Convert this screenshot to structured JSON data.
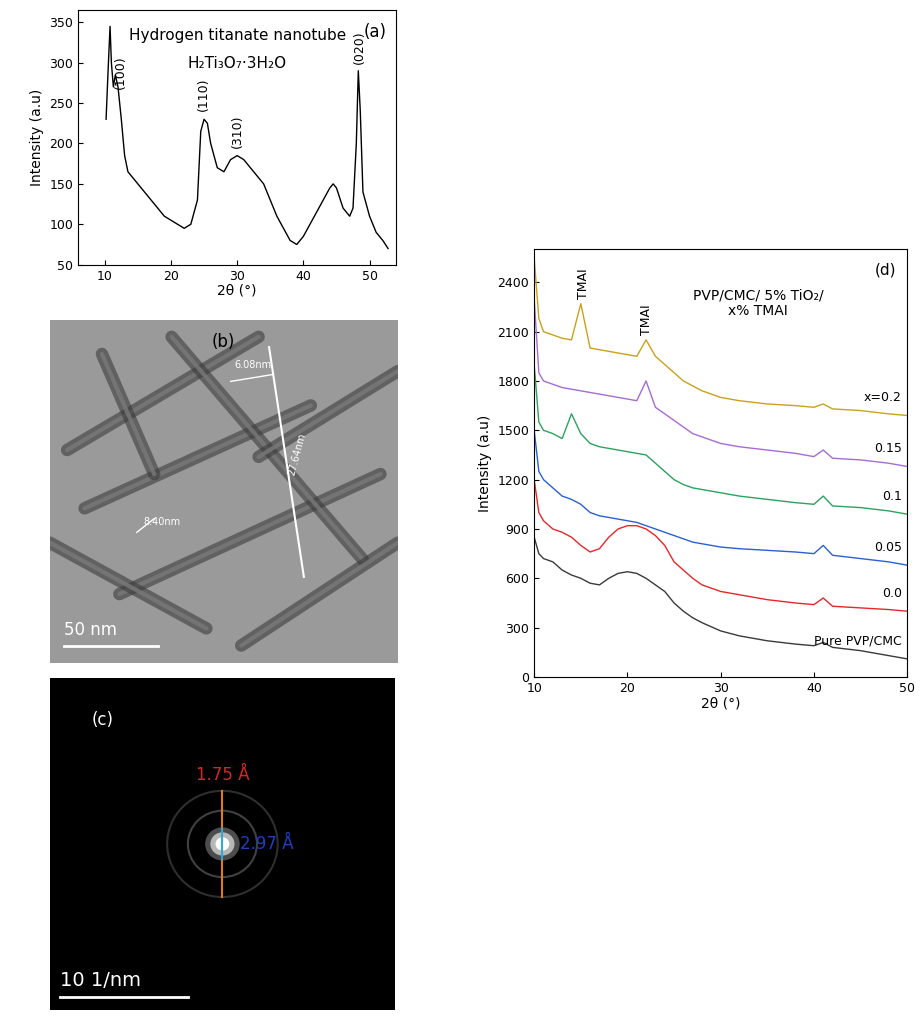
{
  "chart_data": [
    {
      "type": "line",
      "panel_label": "(a)",
      "title": "Hydrogen titanate nanotube",
      "subtitle": "H₂Ti₃O₇·3H₂O",
      "x_label": "2θ (°)",
      "y_label": "Intensity (a.u)",
      "x": [
        10.2,
        10.5,
        10.8,
        11.0,
        11.3,
        11.6,
        12.0,
        12.5,
        13,
        13.5,
        14,
        15,
        16,
        17,
        18,
        19,
        20,
        21,
        22,
        23,
        24,
        24.5,
        25,
        25.5,
        26,
        27,
        28,
        29,
        30,
        31,
        32,
        33,
        34,
        35,
        36,
        37,
        38,
        39,
        40,
        41,
        42,
        43,
        44,
        44.5,
        45,
        46,
        47,
        47.5,
        48,
        48.3,
        48.6,
        49,
        50,
        51,
        52,
        52.8
      ],
      "values": [
        230,
        290,
        345,
        300,
        270,
        285,
        270,
        230,
        185,
        165,
        160,
        150,
        140,
        130,
        120,
        110,
        105,
        100,
        95,
        100,
        130,
        215,
        230,
        225,
        200,
        170,
        165,
        180,
        185,
        180,
        170,
        160,
        150,
        130,
        110,
        95,
        80,
        75,
        85,
        100,
        115,
        130,
        145,
        150,
        145,
        120,
        110,
        120,
        200,
        290,
        240,
        140,
        110,
        90,
        80,
        70
      ],
      "color": "#000000",
      "xlim": [
        6,
        54
      ],
      "ylim": [
        50,
        365
      ],
      "xticks": [
        10,
        20,
        30,
        40,
        50
      ],
      "yticks": [
        50,
        100,
        150,
        200,
        250,
        300,
        350
      ],
      "annotations": [
        {
          "text": "(100)",
          "x": 12.4,
          "y": 268
        },
        {
          "text": "(110)",
          "x": 24.9,
          "y": 240
        },
        {
          "text": "(310)",
          "x": 30.0,
          "y": 195
        },
        {
          "text": "(020)",
          "x": 48.4,
          "y": 298
        }
      ]
    },
    {
      "type": "image",
      "panel_label": "(b)",
      "scale_bar": "50 nm",
      "measurements": [
        "6.08nm",
        "27.64nm",
        "8.40nm"
      ]
    },
    {
      "type": "image",
      "panel_label": "(c)",
      "scale_bar": "10 1/nm",
      "measurements": [
        {
          "text": "1.75 Å",
          "color": "#d62728"
        },
        {
          "text": "2.97 Å",
          "color": "#1f3fbf"
        }
      ]
    },
    {
      "type": "line",
      "panel_label": "(d)",
      "x_label": "2θ (°)",
      "y_label": "Intensity (a.u)",
      "x": [
        10,
        10.5,
        11,
        12,
        13,
        14,
        15,
        16,
        17,
        18,
        19,
        20,
        21,
        22,
        23,
        24,
        25,
        26,
        27,
        28,
        30,
        32,
        35,
        38,
        40,
        41,
        42,
        45,
        48,
        50
      ],
      "series": [
        {
          "name": "Pure PVP/CMC",
          "color": "#3a3a3a",
          "values": [
            850,
            750,
            720,
            700,
            650,
            620,
            600,
            570,
            560,
            600,
            630,
            640,
            630,
            600,
            560,
            520,
            450,
            400,
            360,
            330,
            280,
            250,
            220,
            200,
            190,
            210,
            180,
            160,
            130,
            110
          ]
        },
        {
          "name": "0.0",
          "color": "#e8262a",
          "values": [
            1200,
            1000,
            950,
            900,
            880,
            850,
            800,
            760,
            780,
            850,
            900,
            920,
            920,
            900,
            860,
            800,
            700,
            650,
            600,
            560,
            520,
            500,
            470,
            450,
            440,
            480,
            430,
            420,
            410,
            400
          ]
        },
        {
          "name": "0.05",
          "color": "#2a5fd6",
          "values": [
            1500,
            1250,
            1200,
            1150,
            1100,
            1080,
            1050,
            1000,
            980,
            970,
            960,
            950,
            940,
            920,
            900,
            880,
            860,
            840,
            820,
            810,
            790,
            780,
            770,
            760,
            750,
            800,
            740,
            720,
            700,
            680
          ]
        },
        {
          "name": "0.1",
          "color": "#2ca25f",
          "values": [
            1900,
            1550,
            1500,
            1480,
            1450,
            1600,
            1480,
            1420,
            1400,
            1390,
            1380,
            1370,
            1360,
            1350,
            1300,
            1250,
            1200,
            1170,
            1150,
            1140,
            1120,
            1100,
            1080,
            1060,
            1050,
            1100,
            1040,
            1030,
            1010,
            990
          ]
        },
        {
          "name": "0.15",
          "color": "#a66bd6",
          "values": [
            2300,
            1850,
            1800,
            1780,
            1760,
            1750,
            1740,
            1730,
            1720,
            1710,
            1700,
            1690,
            1680,
            1800,
            1640,
            1600,
            1560,
            1520,
            1480,
            1460,
            1420,
            1400,
            1380,
            1360,
            1340,
            1380,
            1330,
            1320,
            1300,
            1280
          ]
        },
        {
          "name": "x=0.2",
          "color": "#c9a21a",
          "values": [
            2550,
            2180,
            2100,
            2080,
            2060,
            2050,
            2270,
            2000,
            1990,
            1980,
            1970,
            1960,
            1950,
            2050,
            1950,
            1900,
            1850,
            1800,
            1770,
            1740,
            1700,
            1680,
            1660,
            1650,
            1640,
            1660,
            1630,
            1620,
            1600,
            1590
          ]
        }
      ],
      "xlim": [
        10,
        50
      ],
      "ylim": [
        0,
        2600
      ],
      "xticks": [
        10,
        20,
        30,
        40,
        50
      ],
      "yticks": [
        0,
        300,
        600,
        900,
        1200,
        1500,
        1800,
        2100,
        2400
      ],
      "annotations": [
        {
          "text": "TMAI",
          "x": 15.3,
          "y": 2300
        },
        {
          "text": "TMAI",
          "x": 22.0,
          "y": 2080
        },
        {
          "text": "PVP/CMC/ 5% TiO₂/\nx% TMAI",
          "x": 34.0,
          "y": 2180
        }
      ]
    }
  ]
}
